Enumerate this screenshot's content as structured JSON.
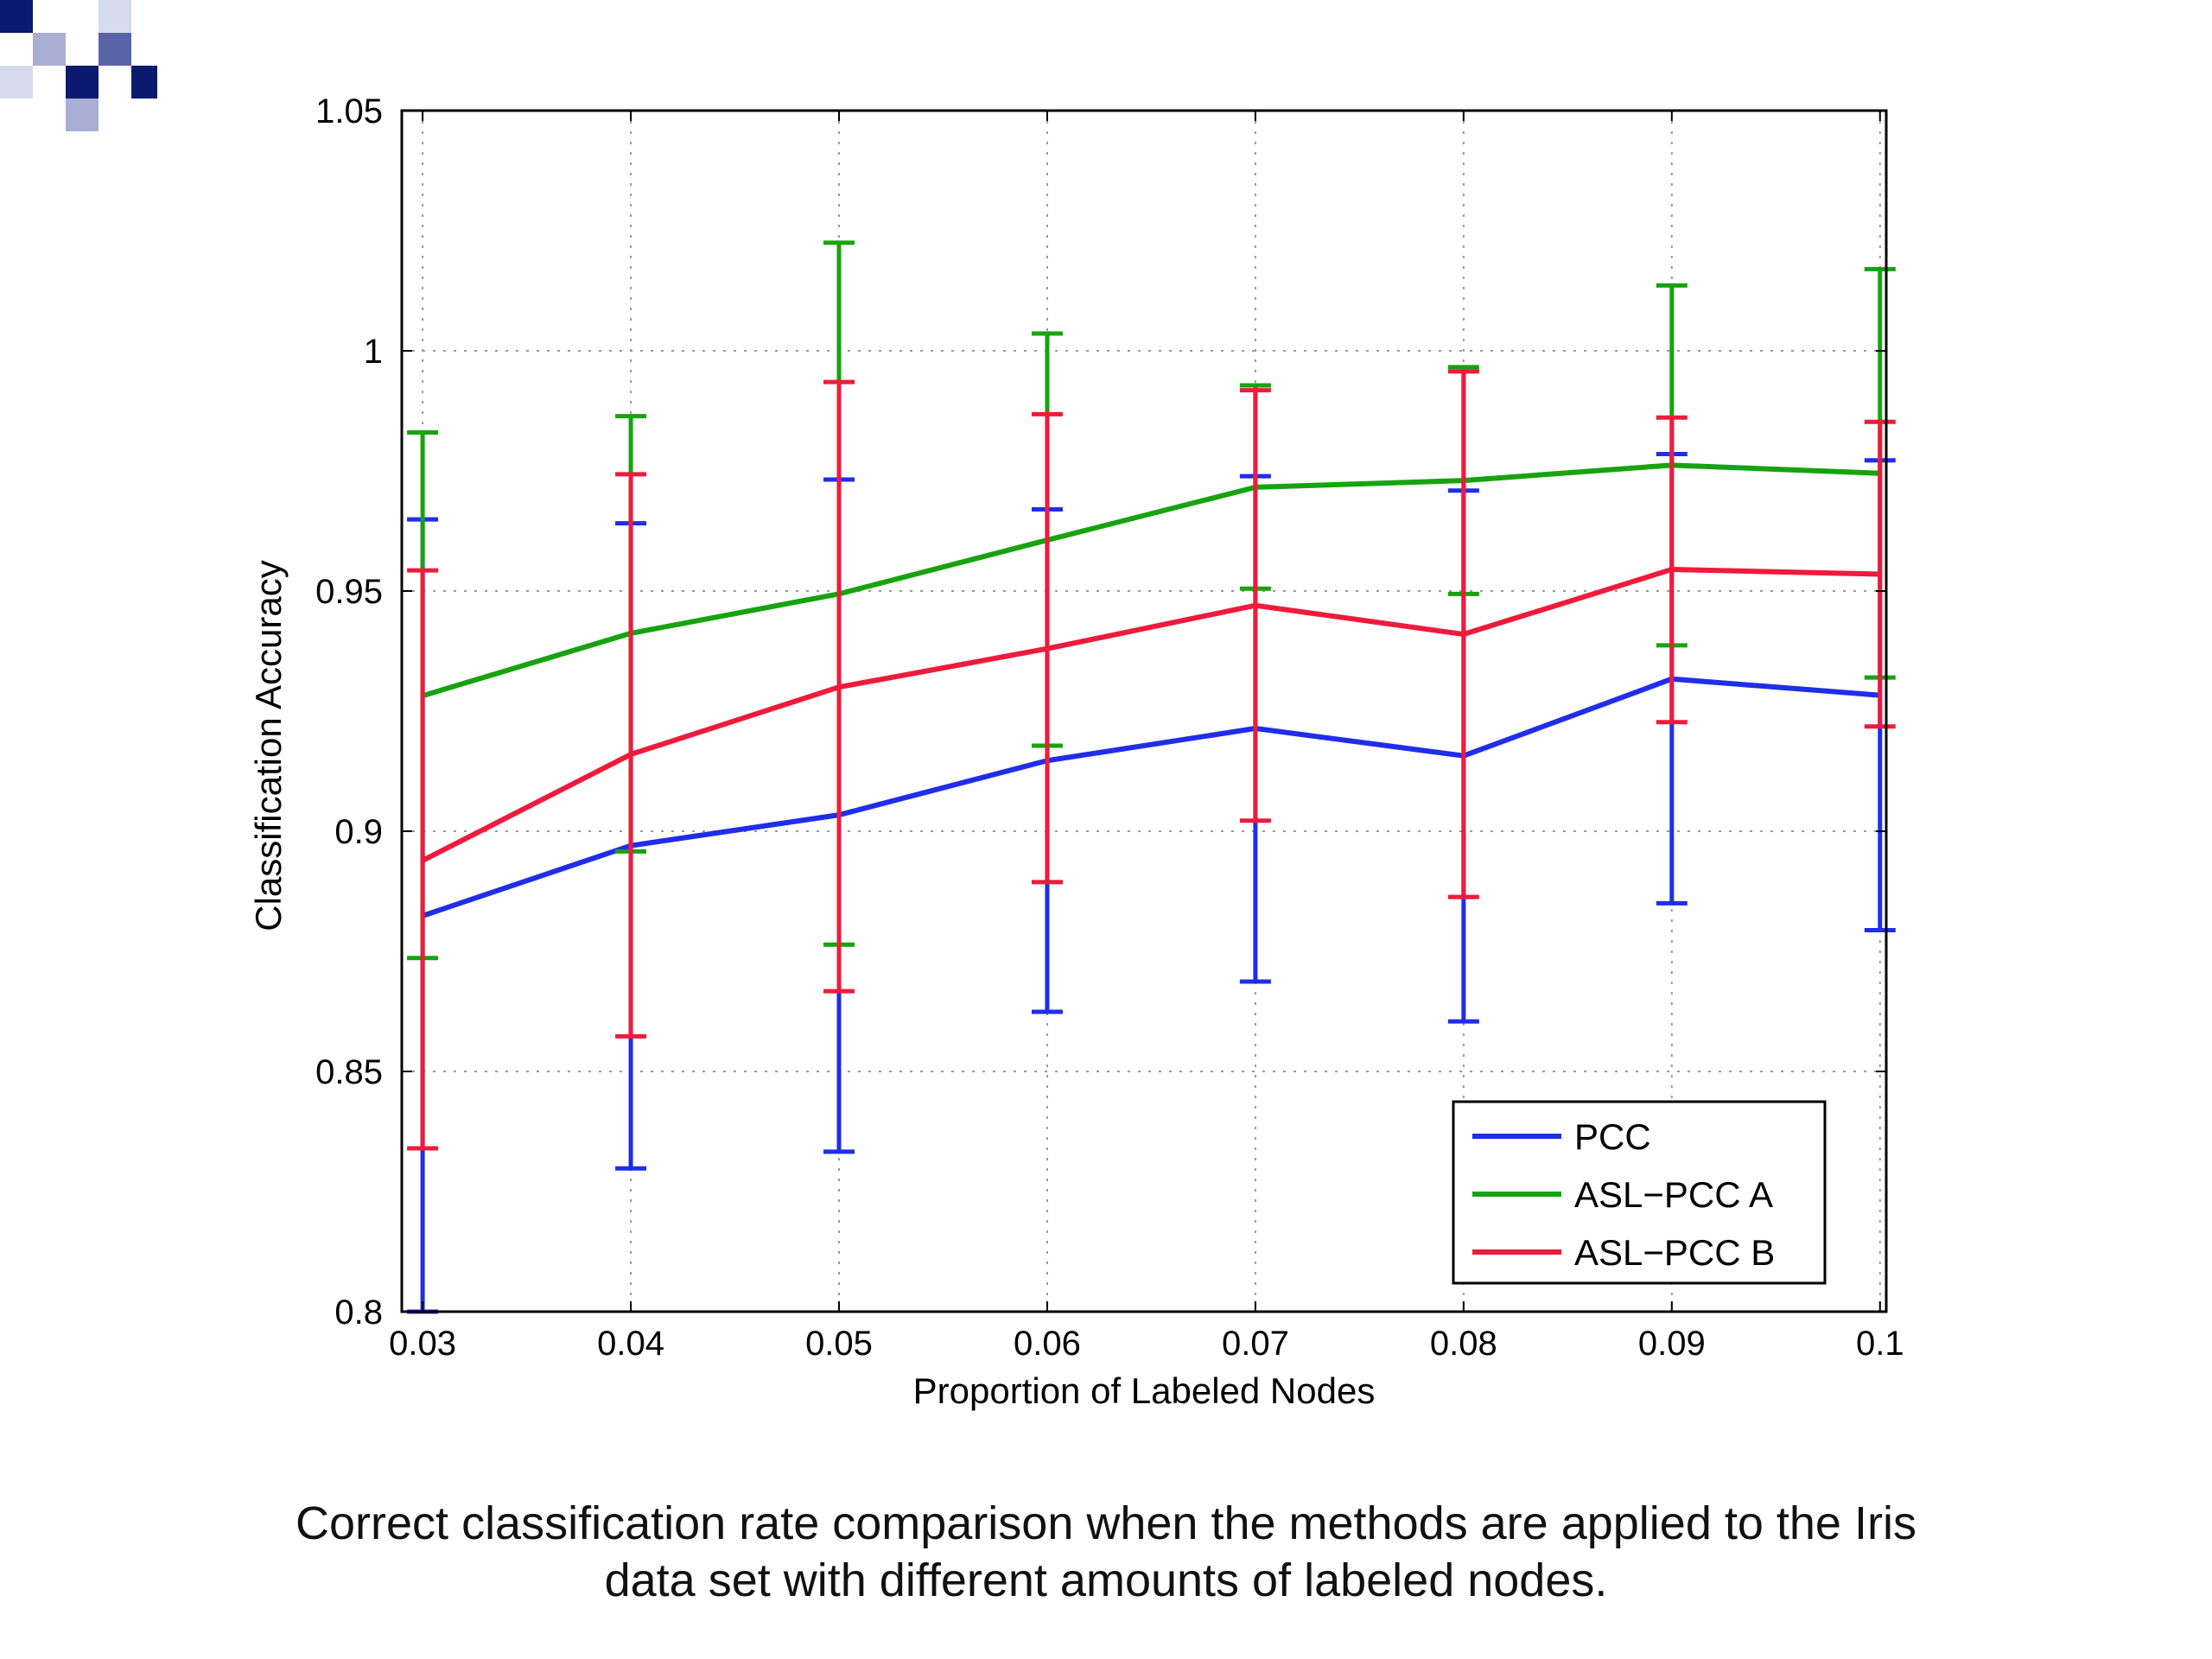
{
  "logo": {
    "icon": "checkered-squares-logo",
    "colors": [
      "#0b1a6e",
      "#5a64a8",
      "#a9aed4",
      "#d7d9ec"
    ]
  },
  "caption": {
    "line1": "Correct classification rate comparison when the methods are applied to the Iris",
    "line2": "data set with different amounts of labeled nodes."
  },
  "chart_data": {
    "type": "line",
    "title": "",
    "xlabel": "Proportion of Labeled Nodes",
    "ylabel": "Classification Accuracy",
    "x": [
      0.03,
      0.04,
      0.05,
      0.06,
      0.07,
      0.08,
      0.09,
      0.1
    ],
    "xticks": [
      "0.03",
      "0.04",
      "0.05",
      "0.06",
      "0.07",
      "0.08",
      "0.09",
      "0.1"
    ],
    "xlim": [
      0.029,
      0.1003
    ],
    "ylim": [
      0.8,
      1.05
    ],
    "yticks": [
      "0.8",
      "0.85",
      "0.9",
      "0.95",
      "1",
      "1.05"
    ],
    "grid": true,
    "legend_position": "bottom-right",
    "error_bars": true,
    "series": [
      {
        "name": "PCC",
        "color": "#1f2ee8",
        "values": [
          0.8824,
          0.897,
          0.9034,
          0.9147,
          0.9214,
          0.9157,
          0.9317,
          0.9283
        ],
        "err_low": [
          0.8,
          0.8298,
          0.8333,
          0.8624,
          0.8687,
          0.8604,
          0.885,
          0.8794
        ],
        "err_high": [
          0.9649,
          0.9641,
          0.9732,
          0.967,
          0.9739,
          0.9709,
          0.9785,
          0.9772
        ]
      },
      {
        "name": "ASL−PCC A",
        "color": "#17a30f",
        "values": [
          0.9282,
          0.9412,
          0.9494,
          0.9606,
          0.9716,
          0.973,
          0.9762,
          0.9745
        ],
        "err_low": [
          0.8736,
          0.8958,
          0.8764,
          0.9178,
          0.9505,
          0.9494,
          0.9387,
          0.932
        ],
        "err_high": [
          0.983,
          0.9864,
          1.0225,
          1.0036,
          0.9928,
          0.9966,
          1.0136,
          1.017
        ]
      },
      {
        "name": "ASL−PCC B",
        "color": "#ee1b3c",
        "values": [
          0.8939,
          0.916,
          0.93,
          0.938,
          0.947,
          0.941,
          0.9545,
          0.9535
        ],
        "err_low": [
          0.834,
          0.8573,
          0.8667,
          0.8894,
          0.9022,
          0.8863,
          0.9227,
          0.9218
        ],
        "err_high": [
          0.9543,
          0.9743,
          0.9935,
          0.9868,
          0.9918,
          0.9957,
          0.9861,
          0.9852
        ]
      }
    ]
  }
}
